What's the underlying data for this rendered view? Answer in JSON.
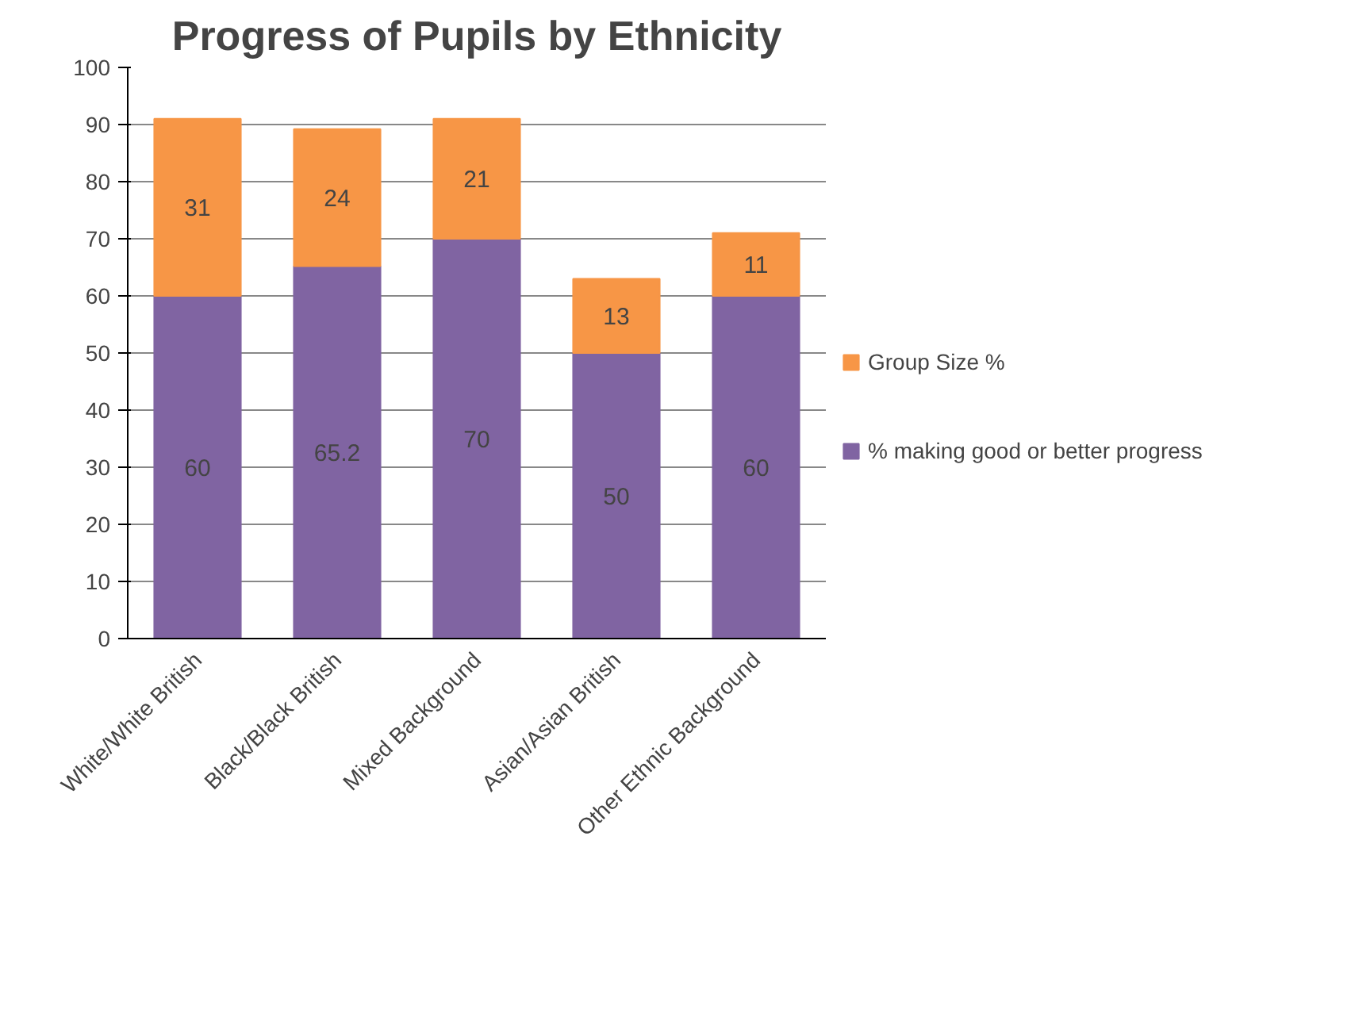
{
  "chart_data": {
    "type": "bar",
    "title": "Progress of Pupils by Ethnicity",
    "categories": [
      "White/White British",
      "Black/Black British",
      "Mixed Background",
      "Asian/Asian British",
      "Other Ethnic Background"
    ],
    "stacked": true,
    "series": [
      {
        "name": "% making good or better progress",
        "color": "#8064a2",
        "values": [
          60,
          65.2,
          70,
          50,
          60
        ]
      },
      {
        "name": "Group Size %",
        "color": "#f79646",
        "values": [
          31,
          24,
          21,
          13,
          11
        ]
      }
    ],
    "ylim": [
      0,
      100
    ],
    "yticks": [
      0,
      10,
      20,
      30,
      40,
      50,
      60,
      70,
      80,
      90,
      100
    ],
    "grid": "y",
    "legend": "right",
    "data_labels": true
  }
}
